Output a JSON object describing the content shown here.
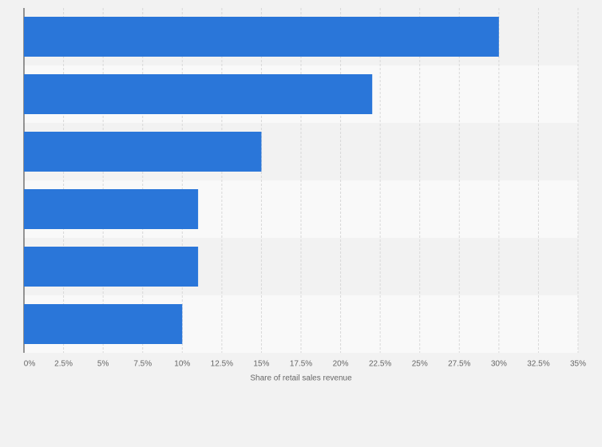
{
  "chart_data": {
    "type": "hbar",
    "x_label": "Share of retail sales revenue",
    "categories": [
      null,
      null,
      null,
      null,
      null,
      null
    ],
    "values": [
      30,
      22,
      15,
      11,
      11,
      10
    ],
    "color": "#2a76d9",
    "xlim": [
      0,
      35
    ],
    "xticks": [
      {
        "value": 0,
        "label": "0%"
      },
      {
        "value": 2.5,
        "label": "2.5%"
      },
      {
        "value": 5,
        "label": "5%"
      },
      {
        "value": 7.5,
        "label": "7.5%"
      },
      {
        "value": 10,
        "label": "10%"
      },
      {
        "value": 12.5,
        "label": "12.5%"
      },
      {
        "value": 15,
        "label": "15%"
      },
      {
        "value": 17.5,
        "label": "17.5%"
      },
      {
        "value": 20,
        "label": "20%"
      },
      {
        "value": 22.5,
        "label": "22.5%"
      },
      {
        "value": 25,
        "label": "25%"
      },
      {
        "value": 27.5,
        "label": "27.5%"
      },
      {
        "value": 30,
        "label": "30%"
      },
      {
        "value": 32.5,
        "label": "32.5%"
      },
      {
        "value": 35,
        "label": "35%"
      }
    ],
    "grid": true
  }
}
